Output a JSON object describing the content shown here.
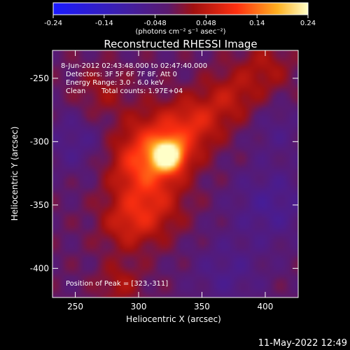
{
  "colorbar": {
    "ticks": [
      "-0.24",
      "-0.14",
      "-0.048",
      "0.048",
      "0.14",
      "0.24"
    ],
    "units": "(photons cm⁻² s⁻¹ asec⁻²)",
    "vmin": -0.24,
    "vmax": 0.24
  },
  "title": "Reconstructed RHESSI Image",
  "annotations": {
    "time_range": "8-Jun-2012 02:43:48.000 to 02:47:40.000",
    "detectors": "Detectors: 3F 5F 6F 7F 8F, Att 0",
    "energy": "Energy Range: 3.0 - 6.0 keV",
    "method": "Clean",
    "counts": "Total counts: 1.97E+04",
    "peak": "Position of Peak = [323,-311]"
  },
  "xlabel": "Heliocentric X (arcsec)",
  "ylabel": "Heliocentric Y (arcsec)",
  "timestamp": "11-May-2022 12:49",
  "chart_data": {
    "type": "heatmap",
    "title": "Reconstructed RHESSI Image",
    "xlabel": "Heliocentric X (arcsec)",
    "ylabel": "Heliocentric Y (arcsec)",
    "xlim": [
      232,
      426
    ],
    "ylim": [
      -423,
      -228
    ],
    "xticks": [
      250,
      300,
      350,
      400
    ],
    "yticks": [
      -250,
      -300,
      -350,
      -400
    ],
    "colorscale": "blue-purple-red-yellow-white",
    "peak": {
      "x": 323,
      "y": -311
    },
    "sources": [
      {
        "x": 323,
        "y": -311,
        "amplitude": 0.24,
        "sigma": 8
      },
      {
        "x": 318,
        "y": -302,
        "amplitude": 0.1,
        "sigma": 20
      },
      {
        "x": 300,
        "y": -320,
        "amplitude": 0.08,
        "sigma": 18
      },
      {
        "x": 345,
        "y": -285,
        "amplitude": 0.07,
        "sigma": 15
      },
      {
        "x": 372,
        "y": -265,
        "amplitude": 0.06,
        "sigma": 15
      },
      {
        "x": 400,
        "y": -242,
        "amplitude": 0.05,
        "sigma": 15
      },
      {
        "x": 310,
        "y": -352,
        "amplitude": 0.07,
        "sigma": 18
      },
      {
        "x": 290,
        "y": -365,
        "amplitude": 0.06,
        "sigma": 15
      },
      {
        "x": 270,
        "y": -262,
        "amplitude": 0.04,
        "sigma": 15
      },
      {
        "x": 285,
        "y": -412,
        "amplitude": 0.05,
        "sigma": 12
      },
      {
        "x": 250,
        "y": -300,
        "amplitude": -0.04,
        "sigma": 18
      },
      {
        "x": 405,
        "y": -350,
        "amplitude": -0.05,
        "sigma": 22
      },
      {
        "x": 370,
        "y": -405,
        "amplitude": -0.04,
        "sigma": 20
      },
      {
        "x": 410,
        "y": -290,
        "amplitude": -0.03,
        "sigma": 15
      }
    ]
  }
}
